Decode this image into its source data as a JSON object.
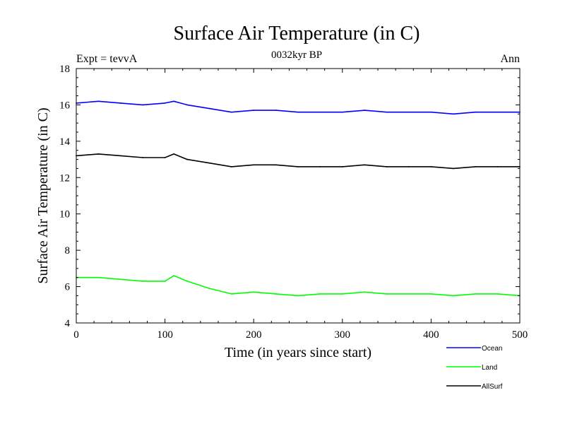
{
  "chart_data": {
    "type": "line",
    "title": "Surface Air Temperature (in C)",
    "subtitle": "0032kyr BP",
    "left_note": "Expt = tevvA",
    "right_note": "Ann",
    "xlabel": "Time (in years since start)",
    "ylabel": "Surface Air Temperature (in C)",
    "xlim": [
      0,
      500
    ],
    "ylim": [
      4,
      18
    ],
    "xticks": [
      0,
      100,
      200,
      300,
      400,
      500
    ],
    "yticks": [
      4,
      6,
      8,
      10,
      12,
      14,
      16,
      18
    ],
    "grid": false,
    "legend_placement": "bottom-right",
    "x": [
      0,
      25,
      50,
      75,
      100,
      110,
      125,
      150,
      175,
      200,
      225,
      250,
      275,
      300,
      325,
      350,
      375,
      400,
      425,
      450,
      475,
      500
    ],
    "series": [
      {
        "name": "Ocean",
        "color": "#0000ff",
        "values": [
          16.1,
          16.2,
          16.1,
          16.0,
          16.1,
          16.2,
          16.0,
          15.8,
          15.6,
          15.7,
          15.7,
          15.6,
          15.6,
          15.6,
          15.7,
          15.6,
          15.6,
          15.6,
          15.5,
          15.6,
          15.6,
          15.6
        ]
      },
      {
        "name": "Land",
        "color": "#00ff00",
        "values": [
          6.5,
          6.5,
          6.4,
          6.3,
          6.3,
          6.6,
          6.3,
          5.9,
          5.6,
          5.7,
          5.6,
          5.5,
          5.6,
          5.6,
          5.7,
          5.6,
          5.6,
          5.6,
          5.5,
          5.6,
          5.6,
          5.5
        ]
      },
      {
        "name": "AllSurf",
        "color": "#000000",
        "values": [
          13.2,
          13.3,
          13.2,
          13.1,
          13.1,
          13.3,
          13.0,
          12.8,
          12.6,
          12.7,
          12.7,
          12.6,
          12.6,
          12.6,
          12.7,
          12.6,
          12.6,
          12.6,
          12.5,
          12.6,
          12.6,
          12.6
        ]
      }
    ]
  }
}
